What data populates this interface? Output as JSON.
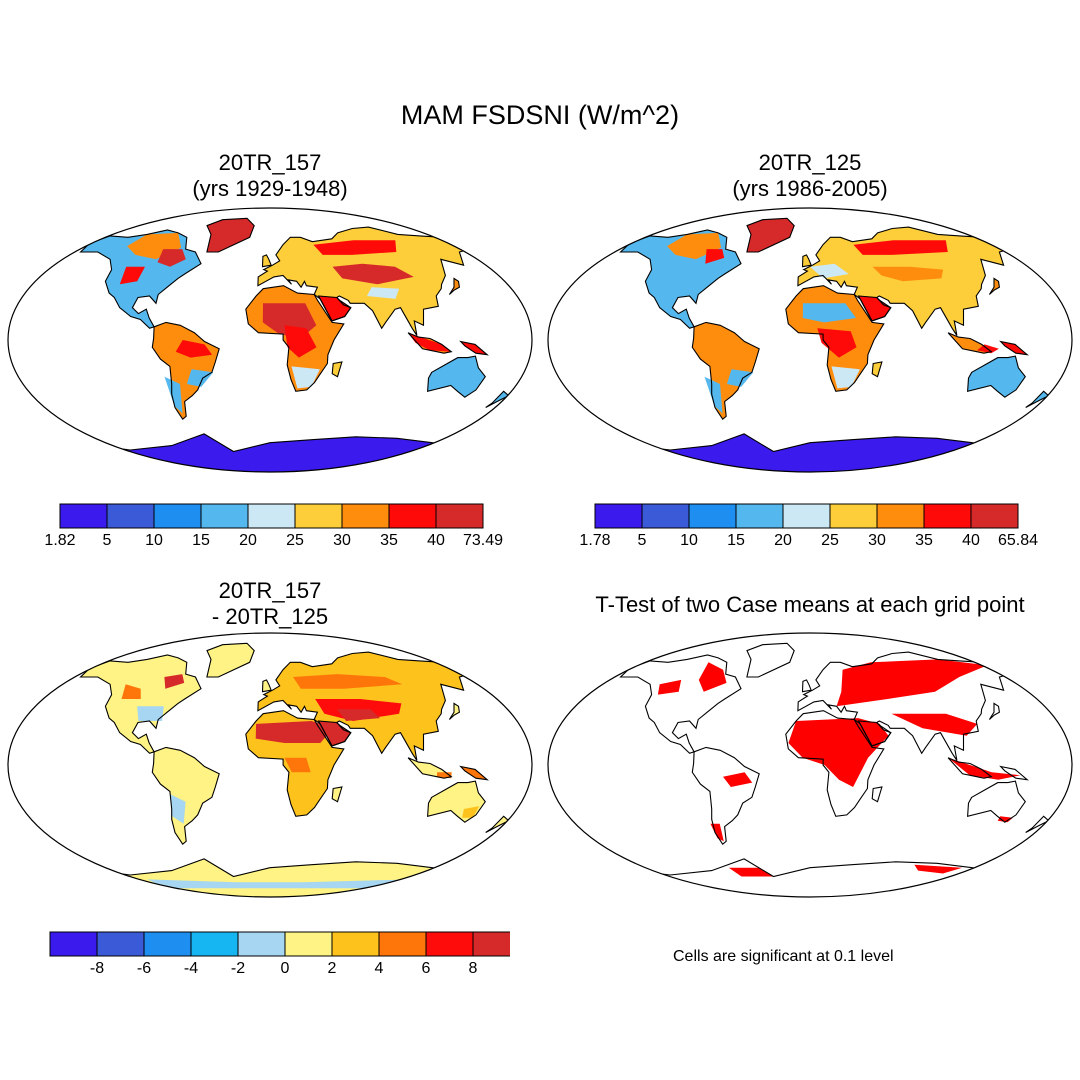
{
  "main_title": "MAM FSDSNI (W/m^2)",
  "panels": [
    {
      "id": "p1",
      "title_lines": [
        "20TR_157",
        "(yrs 1929-1948)"
      ],
      "kind": "mean"
    },
    {
      "id": "p2",
      "title_lines": [
        "20TR_125",
        "(yrs 1986-2005)"
      ],
      "kind": "mean"
    },
    {
      "id": "p3",
      "title_lines": [
        "20TR_157",
        "- 20TR_125"
      ],
      "kind": "diff"
    },
    {
      "id": "p4",
      "title_lines": [
        "T-Test of two Case means at each grid point"
      ],
      "kind": "ttest"
    }
  ],
  "colorbars": [
    {
      "id": "cb1",
      "colors": [
        "#3a1aec",
        "#3a5ad8",
        "#1e8ef0",
        "#54b8ee",
        "#cde8f5",
        "#fece3a",
        "#fe8d0e",
        "#fe0a08",
        "#d62a2a"
      ],
      "labels": [
        "1.82",
        "5",
        "10",
        "15",
        "20",
        "25",
        "30",
        "35",
        "40",
        "73.49"
      ]
    },
    {
      "id": "cb2",
      "colors": [
        "#3a1aec",
        "#3a5ad8",
        "#1e8ef0",
        "#54b8ee",
        "#cde8f5",
        "#fece3a",
        "#fe8d0e",
        "#fe0a08",
        "#d62a2a"
      ],
      "labels": [
        "1.78",
        "5",
        "10",
        "15",
        "20",
        "25",
        "30",
        "35",
        "40",
        "65.84"
      ]
    },
    {
      "id": "cb3",
      "colors": [
        "#3a1aec",
        "#3a5ad8",
        "#1e8ef0",
        "#16b6f2",
        "#a6d6f2",
        "#fef384",
        "#fec21c",
        "#fe760a",
        "#fe0c0c",
        "#d62a2a"
      ],
      "labels": [
        "-8",
        "-6",
        "-4",
        "-2",
        "0",
        "2",
        "4",
        "6",
        "8"
      ]
    }
  ],
  "significance_note": "Cells are significant at 0.1 level",
  "significance_color": "#fe0000"
}
